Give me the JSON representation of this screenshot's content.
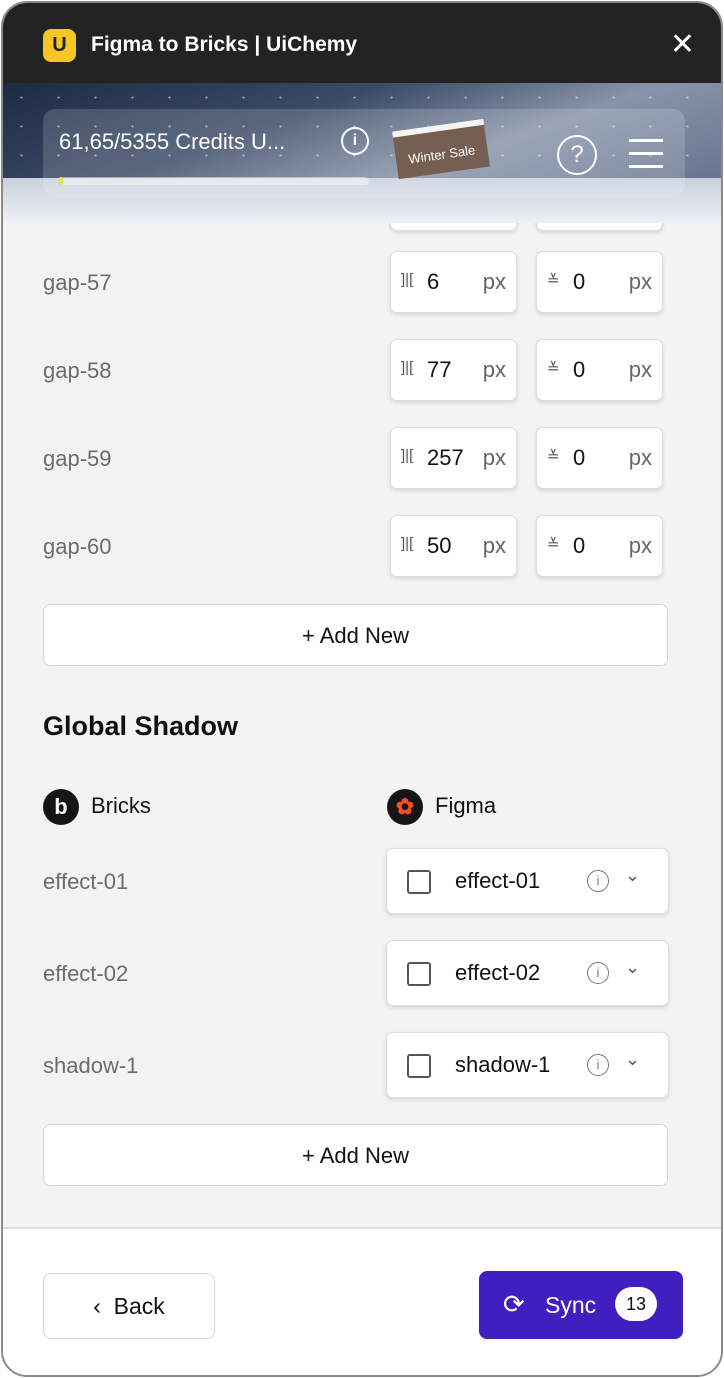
{
  "window": {
    "title": "Figma to Bricks | UiChemy",
    "logo": "U",
    "close_icon": "close-icon"
  },
  "banner": {
    "credits": "61,65/5355 Credits U...",
    "credits_progress_percent": 1.2,
    "sign": "Winter Sale",
    "help": "?",
    "info": "i"
  },
  "gaps": [
    {
      "name": "gap-57",
      "x": "6",
      "y": "0",
      "unit": "px"
    },
    {
      "name": "gap-58",
      "x": "77",
      "y": "0",
      "unit": "px"
    },
    {
      "name": "gap-59",
      "x": "257",
      "y": "0",
      "unit": "px"
    },
    {
      "name": "gap-60",
      "x": "50",
      "y": "0",
      "unit": "px"
    }
  ],
  "add_new": "+ Add New",
  "shadow": {
    "heading": "Global Shadow",
    "bricks_label": "Bricks",
    "figma_label": "Figma",
    "rows": [
      {
        "name": "effect-01",
        "value": "effect-01",
        "checked": false
      },
      {
        "name": "effect-02",
        "value": "effect-02",
        "checked": false
      },
      {
        "name": "shadow-1",
        "value": "shadow-1",
        "checked": false
      }
    ]
  },
  "footer": {
    "back": "Back",
    "sync": "Sync",
    "sync_count": "13",
    "accent": "#3f1fbf"
  }
}
